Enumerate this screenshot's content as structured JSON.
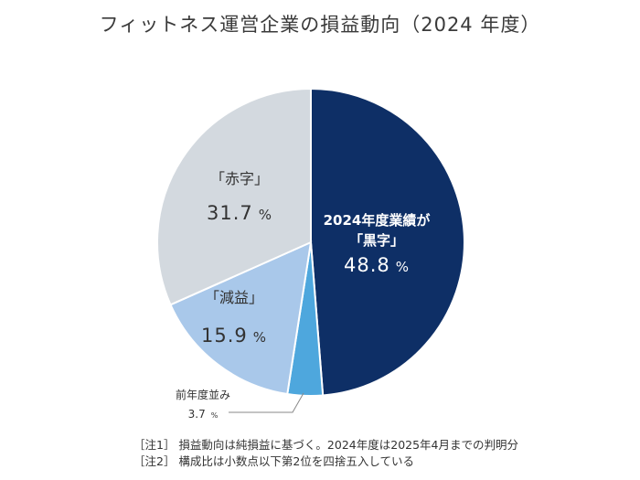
{
  "title": "フィットネス運営企業の損益動向（2024 年度）",
  "chart_data": {
    "type": "pie",
    "unit": "%",
    "slices": [
      {
        "label_lines": [
          "2024年度業績が",
          "「黒字」"
        ],
        "value": 48.8,
        "value_text": "48.8",
        "color": "#0e2f66",
        "text_color": "#ffffff"
      },
      {
        "label_lines": [
          "前年度並み"
        ],
        "value": 3.7,
        "value_text": "3.7",
        "color": "#4ea7dd",
        "text_color": "#333333"
      },
      {
        "label_lines": [
          "「減益」"
        ],
        "value": 15.9,
        "value_text": "15.9",
        "color": "#a9c8ea",
        "text_color": "#333333"
      },
      {
        "label_lines": [
          "「赤字」"
        ],
        "value": 31.7,
        "value_text": "31.7",
        "color": "#d3d9df",
        "text_color": "#333333"
      }
    ]
  },
  "notes": [
    "［注1］ 損益動向は純損益に基づく。2024年度は2025年4月までの判明分",
    "［注2］ 構成比は小数点以下第2位を四捨五入している"
  ]
}
